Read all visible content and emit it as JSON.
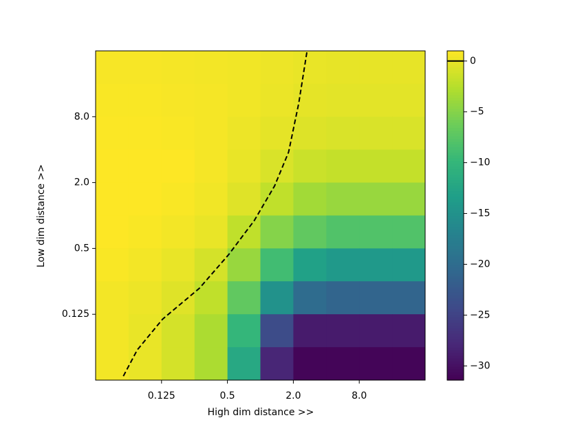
{
  "chart_data": {
    "type": "heatmap",
    "xlabel": "High dim distance >>",
    "ylabel": "Low dim distance >>",
    "xscale": "log",
    "yscale": "log",
    "xlim": [
      0.03125,
      32
    ],
    "ylim": [
      0.03125,
      32
    ],
    "xticks": [
      0.125,
      0.5,
      {
        "value": 2,
        "label": "2.0"
      },
      {
        "value": 8,
        "label": "8.0"
      }
    ],
    "yticks": [
      0.125,
      0.5,
      {
        "value": 2,
        "label": "2.0"
      },
      {
        "value": 8,
        "label": "8.0"
      }
    ],
    "x": [
      0.0442,
      0.0884,
      0.177,
      0.354,
      0.707,
      1.414,
      2.83,
      5.66,
      11.3,
      22.6
    ],
    "y": [
      22.6,
      11.3,
      5.66,
      2.83,
      1.414,
      0.707,
      0.354,
      0.177,
      0.0884,
      0.0442
    ],
    "z": [
      [
        0.7,
        0.7,
        0.6,
        0.5,
        0.4,
        0.2,
        0,
        -0.1,
        -0.1,
        -0.1
      ],
      [
        0.8,
        0.8,
        0.7,
        0.6,
        0.4,
        0.1,
        -0.2,
        -0.3,
        -0.3,
        -0.3
      ],
      [
        0.9,
        0.9,
        0.8,
        0.6,
        0.2,
        -0.2,
        -0.6,
        -0.8,
        -0.8,
        -0.8
      ],
      [
        1,
        1,
        1,
        0.6,
        0,
        -0.8,
        -1.5,
        -1.8,
        -1.8,
        -1.8
      ],
      [
        1,
        1,
        0.8,
        0.4,
        -0.5,
        -2,
        -3.5,
        -4,
        -4,
        -4
      ],
      [
        1,
        0.8,
        0.5,
        0,
        -2,
        -5,
        -7,
        -8,
        -8,
        -8
      ],
      [
        0.8,
        0.5,
        0,
        -1,
        -4,
        -9,
        -13,
        -14,
        -14,
        -14
      ],
      [
        0.5,
        0.2,
        -0.5,
        -2,
        -7,
        -15,
        -20,
        -21,
        -21,
        -21
      ],
      [
        0.5,
        0,
        -1,
        -3,
        -10,
        -24,
        -29,
        -29,
        -29,
        -29
      ],
      [
        0.5,
        0,
        -1,
        -3,
        -12,
        -28,
        -31,
        -31,
        -31,
        -31
      ]
    ],
    "colormap": "viridis",
    "clim": [
      -31.4,
      1.0
    ],
    "cticks": [
      0,
      {
        "value": -5,
        "label": "−5"
      },
      {
        "value": -10,
        "label": "−10"
      },
      {
        "value": -15,
        "label": "−15"
      },
      {
        "value": -20,
        "label": "−20"
      },
      {
        "value": -25,
        "label": "−25"
      },
      {
        "value": -30,
        "label": "−30"
      }
    ],
    "contour_level": 0,
    "contour": {
      "color": "#000000",
      "x": [
        0.056,
        0.075,
        0.128,
        0.277,
        0.514,
        0.88,
        1.35,
        1.81,
        2.24,
        2.67
      ],
      "y": [
        0.034,
        0.059,
        0.113,
        0.216,
        0.44,
        0.9,
        1.87,
        3.8,
        10.6,
        32
      ]
    }
  }
}
